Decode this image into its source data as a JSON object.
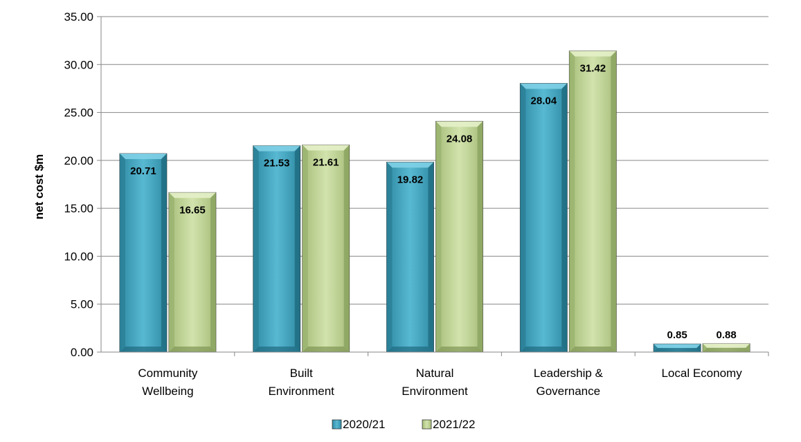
{
  "chart_data": {
    "type": "bar",
    "categories": [
      [
        "Community",
        "Wellbeing"
      ],
      [
        "Built",
        "Environment"
      ],
      [
        "Natural",
        "Environment"
      ],
      [
        "Leadership &",
        "Governance"
      ],
      [
        "Local Economy"
      ]
    ],
    "series": [
      {
        "name": "2020/21",
        "values": [
          20.71,
          21.53,
          19.82,
          28.04,
          0.85
        ],
        "color": "#4BACC6"
      },
      {
        "name": "2021/22",
        "values": [
          16.65,
          21.61,
          24.08,
          31.42,
          0.88
        ],
        "color": "#C3D69B"
      }
    ],
    "ylabel": "net cost $m",
    "ylim": [
      0,
      35
    ],
    "yticks": [
      "0.00",
      "5.00",
      "10.00",
      "15.00",
      "20.00",
      "25.00",
      "30.00",
      "35.00"
    ],
    "grid": true,
    "legend": "bottom"
  }
}
